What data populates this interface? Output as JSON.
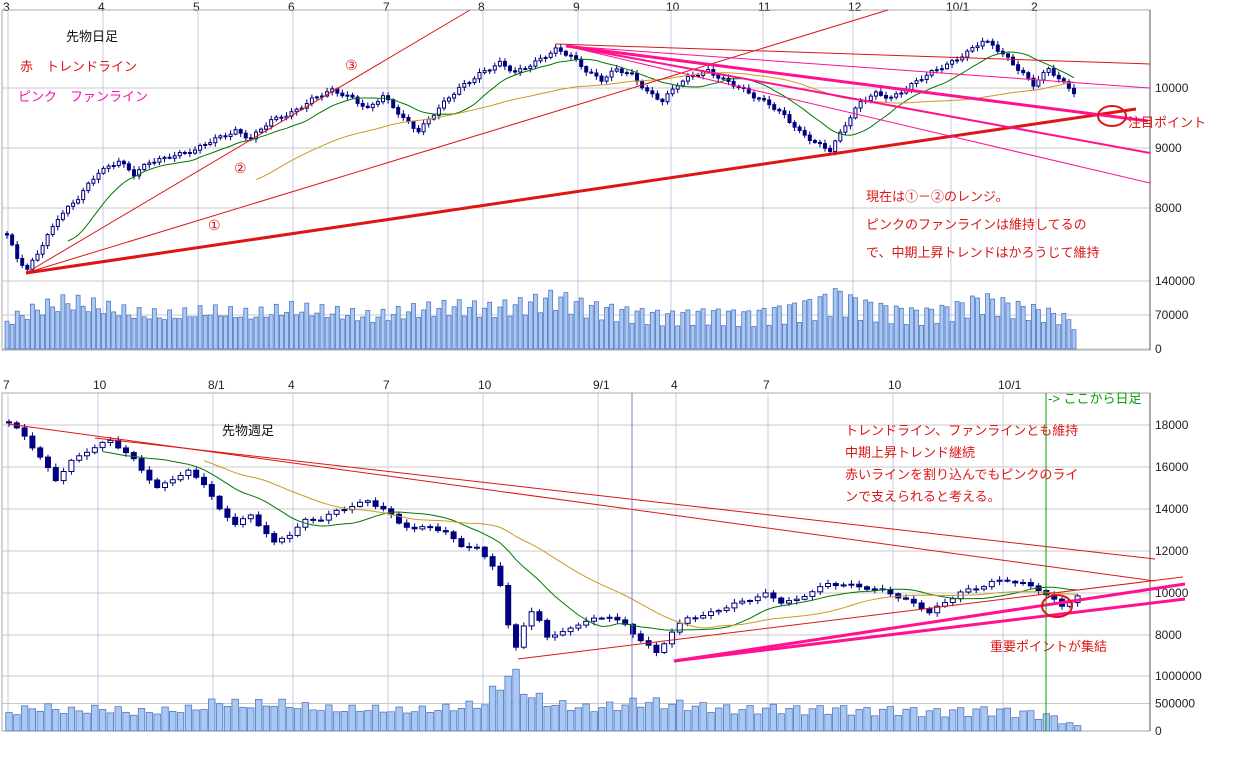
{
  "texts": {
    "daily_title": "先物日足",
    "daily_legend_red": "赤　トレンドライン",
    "daily_legend_pink": "ピンク　ファンライン",
    "fan1": "①",
    "fan2": "②",
    "fan3": "③",
    "daily_note_1": "現在は①－②のレンジ。",
    "daily_note_2": "ピンクのファンラインは維持してるの",
    "daily_note_3": "で、中期上昇トレンドはかろうじて維持",
    "daily_point": "注目ポイント",
    "weekly_title": "先物週足",
    "weekly_green_note": "-> ここから日足",
    "weekly_note_1": "トレンドライン、ファンラインとも維持",
    "weekly_note_2": "中期上昇トレンド継続",
    "weekly_note_3": "赤いラインを割り込んでもピンクのライ",
    "weekly_note_4": "ンで支えられると考える。",
    "weekly_point": "重要ポイントが集結"
  },
  "colors": {
    "red": "#dd1515",
    "pink": "#ff1190",
    "green": "#00a000",
    "candle": "#000080",
    "candle_up_fill": "#ffffff",
    "ma_short": "#007700",
    "ma_long": "#cc9922",
    "volume_fill": "#a9c9f5",
    "volume_stroke": "#4d6fbb",
    "grid_h": "#c9c9c9",
    "grid_v": "#c8c8e8"
  },
  "chart_data": [
    {
      "type": "candlestick+volume",
      "timeframe": "daily",
      "title": "先物日足",
      "legend": [
        "赤　トレンドライン",
        "ピンク　ファンライン"
      ],
      "ylim": [
        6850,
        11300
      ],
      "volume_max": 140000,
      "x_ticks": [
        {
          "label": "3",
          "x": 5
        },
        {
          "label": "4",
          "x": 100
        },
        {
          "label": "5",
          "x": 195
        },
        {
          "label": "6",
          "x": 290
        },
        {
          "label": "7",
          "x": 385
        },
        {
          "label": "8",
          "x": 480
        },
        {
          "label": "9",
          "x": 575
        },
        {
          "label": "10",
          "x": 668
        },
        {
          "label": "11",
          "x": 760
        },
        {
          "label": "12",
          "x": 850
        },
        {
          "label": "10/1",
          "x": 948
        },
        {
          "label": "2",
          "x": 1033
        }
      ],
      "price_ticks": [
        10000,
        9000,
        8000
      ],
      "volume_ticks": [
        140000,
        70000,
        0
      ],
      "n": 211,
      "close_anchors": [
        [
          0,
          7550
        ],
        [
          2,
          7150
        ],
        [
          4,
          6950
        ],
        [
          7,
          7400
        ],
        [
          10,
          7850
        ],
        [
          14,
          8150
        ],
        [
          18,
          8600
        ],
        [
          22,
          8800
        ],
        [
          25,
          8550
        ],
        [
          28,
          8750
        ],
        [
          33,
          8900
        ],
        [
          37,
          8950
        ],
        [
          41,
          9150
        ],
        [
          45,
          9300
        ],
        [
          48,
          9150
        ],
        [
          52,
          9450
        ],
        [
          56,
          9600
        ],
        [
          60,
          9800
        ],
        [
          64,
          9950
        ],
        [
          68,
          9850
        ],
        [
          71,
          9650
        ],
        [
          74,
          9850
        ],
        [
          78,
          9500
        ],
        [
          81,
          9300
        ],
        [
          85,
          9650
        ],
        [
          89,
          10000
        ],
        [
          93,
          10250
        ],
        [
          97,
          10400
        ],
        [
          100,
          10250
        ],
        [
          104,
          10450
        ],
        [
          108,
          10630
        ],
        [
          111,
          10520
        ],
        [
          114,
          10300
        ],
        [
          117,
          10150
        ],
        [
          120,
          10300
        ],
        [
          123,
          10200
        ],
        [
          126,
          9950
        ],
        [
          129,
          9800
        ],
        [
          132,
          10050
        ],
        [
          135,
          10200
        ],
        [
          138,
          10300
        ],
        [
          141,
          10150
        ],
        [
          144,
          10000
        ],
        [
          147,
          9850
        ],
        [
          150,
          9750
        ],
        [
          153,
          9550
        ],
        [
          156,
          9250
        ],
        [
          159,
          9080
        ],
        [
          162,
          8980
        ],
        [
          165,
          9400
        ],
        [
          168,
          9750
        ],
        [
          171,
          9900
        ],
        [
          174,
          9850
        ],
        [
          177,
          10000
        ],
        [
          180,
          10150
        ],
        [
          183,
          10300
        ],
        [
          186,
          10450
        ],
        [
          189,
          10600
        ],
        [
          192,
          10770
        ],
        [
          194,
          10700
        ],
        [
          197,
          10500
        ],
        [
          200,
          10250
        ],
        [
          202,
          10050
        ],
        [
          205,
          10300
        ],
        [
          207,
          10150
        ],
        [
          210,
          9950
        ]
      ],
      "volume_anchors": [
        [
          0,
          60000
        ],
        [
          6,
          85000
        ],
        [
          12,
          100000
        ],
        [
          18,
          90000
        ],
        [
          25,
          75000
        ],
        [
          32,
          70000
        ],
        [
          40,
          80000
        ],
        [
          48,
          72000
        ],
        [
          56,
          85000
        ],
        [
          64,
          78000
        ],
        [
          72,
          68000
        ],
        [
          80,
          82000
        ],
        [
          88,
          90000
        ],
        [
          95,
          85000
        ],
        [
          102,
          95000
        ],
        [
          108,
          110000
        ],
        [
          114,
          90000
        ],
        [
          122,
          78000
        ],
        [
          130,
          70000
        ],
        [
          138,
          76000
        ],
        [
          146,
          72000
        ],
        [
          154,
          85000
        ],
        [
          160,
          100000
        ],
        [
          163,
          115000
        ],
        [
          168,
          95000
        ],
        [
          174,
          82000
        ],
        [
          180,
          75000
        ],
        [
          186,
          85000
        ],
        [
          192,
          105000
        ],
        [
          198,
          90000
        ],
        [
          203,
          80000
        ],
        [
          207,
          70000
        ],
        [
          210,
          55000
        ]
      ],
      "trendlines": [
        {
          "name": "fan-trend-line-1",
          "x1": 26,
          "y1": 273,
          "x2": 1136,
          "y2": 109,
          "color": "red",
          "w": 3
        },
        {
          "name": "fan-trend-line-2",
          "x1": 26,
          "y1": 273,
          "x2": 888,
          "y2": 10,
          "color": "red",
          "w": 1
        },
        {
          "name": "fan-trend-line-3",
          "x1": 26,
          "y1": 273,
          "x2": 470,
          "y2": 10,
          "color": "red",
          "w": 1
        },
        {
          "name": "resistance-line",
          "x1": 556,
          "y1": 44,
          "x2": 1150,
          "y2": 64,
          "color": "red",
          "w": 1
        },
        {
          "name": "pink-fan-line-1",
          "x1": 566,
          "y1": 46,
          "x2": 1150,
          "y2": 88,
          "color": "pink",
          "w": 1
        },
        {
          "name": "pink-fan-line-2",
          "x1": 566,
          "y1": 46,
          "x2": 1148,
          "y2": 121,
          "color": "pink",
          "w": 3
        },
        {
          "name": "pink-fan-line-3",
          "x1": 566,
          "y1": 46,
          "x2": 1150,
          "y2": 153,
          "color": "pink",
          "w": 2
        },
        {
          "name": "pink-fan-line-4",
          "x1": 566,
          "y1": 46,
          "x2": 1150,
          "y2": 183,
          "color": "pink",
          "w": 1
        }
      ],
      "circles": [
        {
          "cx": 1112,
          "cy": 116,
          "rx": 14,
          "ry": 10
        }
      ]
    },
    {
      "type": "candlestick+volume",
      "timeframe": "weekly",
      "title": "先物週足",
      "ylim": [
        6450,
        19500
      ],
      "volume_max": 1200000,
      "x_ticks": [
        {
          "label": "7",
          "x": 5
        },
        {
          "label": "10",
          "x": 95
        },
        {
          "label": "8/1",
          "x": 210
        },
        {
          "label": "4",
          "x": 290
        },
        {
          "label": "7",
          "x": 385
        },
        {
          "label": "10",
          "x": 480
        },
        {
          "label": "9/1",
          "x": 595
        },
        {
          "label": "4",
          "x": 673
        },
        {
          "label": "7",
          "x": 765
        },
        {
          "label": "10",
          "x": 890
        },
        {
          "label": "10/1",
          "x": 1000
        }
      ],
      "price_ticks": [
        18000,
        16000,
        14000,
        12000,
        10000,
        8000
      ],
      "volume_ticks": [
        1000000,
        500000,
        0
      ],
      "n": 138,
      "close_anchors": [
        [
          0,
          18100
        ],
        [
          2,
          17450
        ],
        [
          4,
          16400
        ],
        [
          6,
          15400
        ],
        [
          8,
          16300
        ],
        [
          10,
          16800
        ],
        [
          13,
          17250
        ],
        [
          16,
          16300
        ],
        [
          19,
          15000
        ],
        [
          21,
          15500
        ],
        [
          23,
          15800
        ],
        [
          25,
          15200
        ],
        [
          27,
          13900
        ],
        [
          29,
          13300
        ],
        [
          31,
          13700
        ],
        [
          33,
          12900
        ],
        [
          34,
          12400
        ],
        [
          36,
          12800
        ],
        [
          38,
          13400
        ],
        [
          40,
          13500
        ],
        [
          42,
          13900
        ],
        [
          44,
          14200
        ],
        [
          46,
          14400
        ],
        [
          48,
          14000
        ],
        [
          50,
          13300
        ],
        [
          52,
          13000
        ],
        [
          54,
          13200
        ],
        [
          56,
          12900
        ],
        [
          58,
          12300
        ],
        [
          60,
          12100
        ],
        [
          62,
          11300
        ],
        [
          63,
          10300
        ],
        [
          64,
          8400
        ],
        [
          65,
          7450
        ],
        [
          66,
          8500
        ],
        [
          67,
          9100
        ],
        [
          68,
          8700
        ],
        [
          69,
          8000
        ],
        [
          71,
          8100
        ],
        [
          73,
          8500
        ],
        [
          75,
          8700
        ],
        [
          77,
          8900
        ],
        [
          79,
          8500
        ],
        [
          81,
          7800
        ],
        [
          83,
          7150
        ],
        [
          85,
          8100
        ],
        [
          87,
          8800
        ],
        [
          89,
          8900
        ],
        [
          91,
          9250
        ],
        [
          93,
          9500
        ],
        [
          95,
          9700
        ],
        [
          97,
          9900
        ],
        [
          99,
          9550
        ],
        [
          101,
          9650
        ],
        [
          103,
          10150
        ],
        [
          105,
          10450
        ],
        [
          107,
          10400
        ],
        [
          109,
          10250
        ],
        [
          111,
          10150
        ],
        [
          113,
          10000
        ],
        [
          115,
          9700
        ],
        [
          117,
          9350
        ],
        [
          118,
          9100
        ],
        [
          120,
          9500
        ],
        [
          122,
          10000
        ],
        [
          124,
          10200
        ],
        [
          126,
          10550
        ],
        [
          128,
          10650
        ],
        [
          130,
          10450
        ],
        [
          132,
          10150
        ],
        [
          134,
          9600
        ],
        [
          135,
          9350
        ],
        [
          136,
          9600
        ],
        [
          137,
          9850
        ]
      ],
      "volume_anchors": [
        [
          0,
          350000
        ],
        [
          4,
          450000
        ],
        [
          8,
          380000
        ],
        [
          12,
          420000
        ],
        [
          16,
          350000
        ],
        [
          20,
          380000
        ],
        [
          24,
          420000
        ],
        [
          27,
          550000
        ],
        [
          30,
          480000
        ],
        [
          34,
          520000
        ],
        [
          38,
          450000
        ],
        [
          42,
          400000
        ],
        [
          46,
          420000
        ],
        [
          50,
          380000
        ],
        [
          54,
          400000
        ],
        [
          58,
          450000
        ],
        [
          61,
          520000
        ],
        [
          63,
          900000
        ],
        [
          64,
          1080000
        ],
        [
          65,
          980000
        ],
        [
          67,
          650000
        ],
        [
          70,
          500000
        ],
        [
          74,
          430000
        ],
        [
          78,
          470000
        ],
        [
          81,
          550000
        ],
        [
          84,
          520000
        ],
        [
          87,
          480000
        ],
        [
          90,
          440000
        ],
        [
          94,
          400000
        ],
        [
          98,
          430000
        ],
        [
          102,
          400000
        ],
        [
          106,
          420000
        ],
        [
          110,
          380000
        ],
        [
          114,
          400000
        ],
        [
          118,
          360000
        ],
        [
          122,
          380000
        ],
        [
          126,
          400000
        ],
        [
          130,
          350000
        ],
        [
          133,
          300000
        ],
        [
          135,
          200000
        ],
        [
          137,
          90000
        ]
      ],
      "trendlines": [
        {
          "name": "weekly-trend-line-upper",
          "x1": 8,
          "y1": 424,
          "x2": 1155,
          "y2": 581,
          "color": "red",
          "w": 1
        },
        {
          "name": "weekly-trend-line-upper-2",
          "x1": 95,
          "y1": 438,
          "x2": 1155,
          "y2": 559,
          "color": "red",
          "w": 1
        },
        {
          "name": "weekly-support-line",
          "x1": 518,
          "y1": 659,
          "x2": 1183,
          "y2": 577,
          "color": "red",
          "w": 1
        },
        {
          "name": "weekly-fan-line-1",
          "x1": 674,
          "y1": 661,
          "x2": 1185,
          "y2": 584,
          "color": "pink",
          "w": 3
        },
        {
          "name": "weekly-fan-line-2",
          "x1": 674,
          "y1": 661,
          "x2": 1185,
          "y2": 599,
          "color": "pink",
          "w": 3
        },
        {
          "name": "month-divider-line",
          "x1": 632,
          "y1": 393,
          "x2": 632,
          "y2": 731,
          "color": "#8080c0",
          "w": 1
        },
        {
          "name": "daily-start-line",
          "x1": 1046,
          "y1": 393,
          "x2": 1046,
          "y2": 731,
          "color": "green",
          "w": 1
        }
      ],
      "circles": [
        {
          "cx": 1057,
          "cy": 606,
          "rx": 15,
          "ry": 11
        }
      ]
    }
  ]
}
